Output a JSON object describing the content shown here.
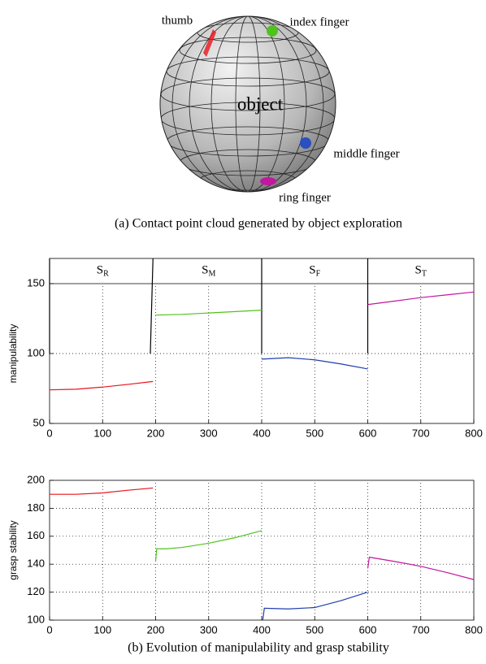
{
  "figure_a": {
    "labels": [
      "thumb",
      "index finger",
      "object",
      "middle finger",
      "ring finger"
    ],
    "caption": "(a) Contact point cloud generated by object exploration"
  },
  "chart_data": [
    {
      "type": "line",
      "ylabel": "manipulability",
      "xlim": [
        0,
        800
      ],
      "xticks": [
        0,
        100,
        200,
        300,
        400,
        500,
        600,
        700,
        800
      ],
      "ylim": [
        50,
        168
      ],
      "yticks": [
        50,
        100,
        150
      ],
      "grid": true,
      "phases": [
        {
          "main": "S",
          "sub": "R"
        },
        {
          "main": "S",
          "sub": "M"
        },
        {
          "main": "S",
          "sub": "F"
        },
        {
          "main": "S",
          "sub": "T"
        }
      ],
      "series": [
        {
          "color": "#000000",
          "x": [
            0,
            0
          ],
          "values": [
            100,
            168
          ]
        },
        {
          "color": "#000000",
          "x": [
            190,
            195
          ],
          "values": [
            100,
            168
          ]
        },
        {
          "color": "#000000",
          "x": [
            400,
            400
          ],
          "values": [
            100,
            168
          ]
        },
        {
          "color": "#000000",
          "x": [
            600,
            600
          ],
          "values": [
            100,
            168
          ]
        },
        {
          "color": "#e8141c",
          "x": [
            0,
            50,
            100,
            150,
            195
          ],
          "values": [
            74,
            74.5,
            76,
            78,
            80
          ]
        },
        {
          "color": "#4fc21e",
          "x": [
            200,
            250,
            300,
            350,
            400
          ],
          "values": [
            127.5,
            128,
            129,
            130,
            131
          ]
        },
        {
          "color": "#1f3fae",
          "x": [
            400,
            450,
            500,
            550,
            600
          ],
          "values": [
            96,
            97,
            95.5,
            92.5,
            89
          ]
        },
        {
          "color": "#c2179e",
          "x": [
            600,
            650,
            700,
            750,
            800
          ],
          "values": [
            135,
            137.5,
            140,
            142,
            144
          ]
        }
      ]
    },
    {
      "type": "line",
      "ylabel": "grasp stability",
      "xlim": [
        0,
        800
      ],
      "xticks": [
        0,
        100,
        200,
        300,
        400,
        500,
        600,
        700,
        800
      ],
      "ylim": [
        100,
        200
      ],
      "yticks": [
        100,
        120,
        140,
        160,
        180,
        200
      ],
      "grid": true,
      "series": [
        {
          "color": "#e8141c",
          "x": [
            0,
            50,
            100,
            150,
            195
          ],
          "values": [
            190,
            190,
            191,
            193,
            194.5
          ]
        },
        {
          "color": "#4fc21e",
          "x": [
            200,
            202,
            220,
            250,
            300,
            350,
            400
          ],
          "values": [
            142,
            151,
            151,
            152,
            155,
            159,
            164
          ]
        },
        {
          "color": "#1f3fae",
          "x": [
            402,
            405,
            450,
            500,
            550,
            600
          ],
          "values": [
            100,
            108.5,
            108,
            109,
            114,
            120
          ]
        },
        {
          "color": "#c2179e",
          "x": [
            600,
            603,
            650,
            700,
            750,
            800
          ],
          "values": [
            137,
            145,
            142,
            138.5,
            134,
            129
          ]
        }
      ]
    }
  ],
  "caption_b": "(b) Evolution of manipulability and grasp stability"
}
